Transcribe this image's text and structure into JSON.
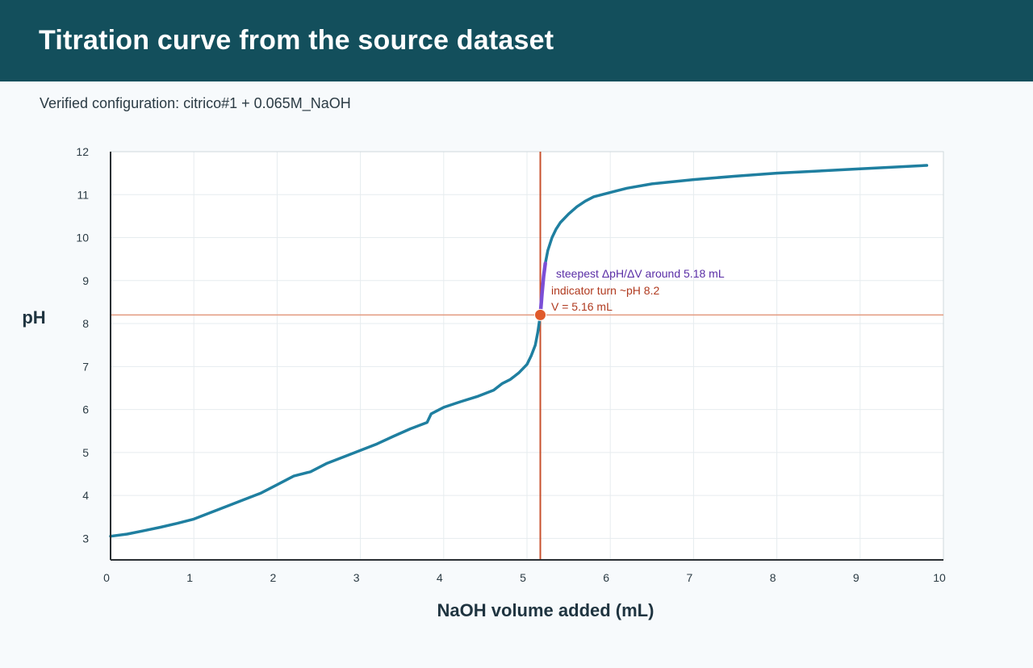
{
  "header": {
    "title": "Titration curve from the source dataset"
  },
  "subtitle": "Verified configuration: citrico#1 + 0.065M_NaOH",
  "colors": {
    "header_bg": "#134f5c",
    "curve": "#1f7fa0",
    "steep_segment": "#7b4fd6",
    "crosshair_vertical": "#c8502d",
    "crosshair_horizontal": "#e39a7f",
    "marker": "#e05a2b",
    "annotation_steep": "#5a2ea6",
    "annotation_indicator": "#b03a1f"
  },
  "chart_data": {
    "type": "line",
    "title": "",
    "xlabel": "NaOH volume added (mL)",
    "ylabel": "pH",
    "xlim": [
      0,
      10
    ],
    "ylim": [
      2.5,
      12
    ],
    "x_ticks": [
      0,
      1,
      2,
      3,
      4,
      5,
      6,
      7,
      8,
      9,
      10
    ],
    "y_ticks": [
      3,
      4,
      5,
      6,
      7,
      8,
      9,
      10,
      11,
      12
    ],
    "grid": true,
    "series": [
      {
        "name": "",
        "x": [
          0.0,
          0.2,
          0.4,
          0.6,
          0.8,
          1.0,
          1.2,
          1.4,
          1.6,
          1.8,
          2.0,
          2.2,
          2.4,
          2.6,
          2.8,
          3.0,
          3.2,
          3.4,
          3.6,
          3.8,
          3.85,
          4.0,
          4.2,
          4.4,
          4.6,
          4.7,
          4.8,
          4.9,
          5.0,
          5.05,
          5.1,
          5.13,
          5.16,
          5.18,
          5.2,
          5.22,
          5.25,
          5.3,
          5.35,
          5.4,
          5.5,
          5.6,
          5.7,
          5.8,
          6.0,
          6.2,
          6.5,
          7.0,
          7.5,
          8.0,
          8.5,
          9.0,
          9.5,
          9.8
        ],
        "y": [
          3.05,
          3.1,
          3.18,
          3.26,
          3.35,
          3.45,
          3.6,
          3.75,
          3.9,
          4.05,
          4.25,
          4.45,
          4.55,
          4.75,
          4.9,
          5.05,
          5.2,
          5.38,
          5.55,
          5.7,
          5.9,
          6.05,
          6.18,
          6.3,
          6.45,
          6.6,
          6.7,
          6.85,
          7.05,
          7.25,
          7.5,
          7.8,
          8.2,
          8.7,
          9.1,
          9.4,
          9.7,
          10.0,
          10.2,
          10.35,
          10.55,
          10.72,
          10.85,
          10.95,
          11.05,
          11.15,
          11.25,
          11.35,
          11.43,
          11.5,
          11.55,
          11.6,
          11.65,
          11.68
        ]
      }
    ],
    "highlight_segment": {
      "x_start": 5.16,
      "x_end": 5.22
    },
    "crosshair": {
      "x": 5.16,
      "y": 8.2
    },
    "annotations": {
      "steepest": "steepest ΔpH/ΔV around 5.18 mL",
      "indicator": "indicator turn ~pH 8.2",
      "volume": "V = 5.16 mL"
    }
  }
}
